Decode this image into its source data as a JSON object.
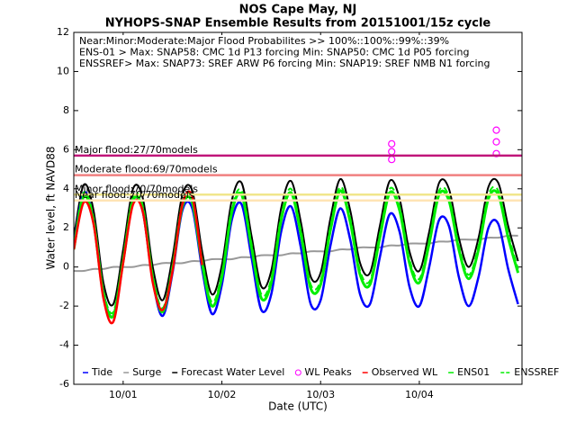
{
  "chart_data": {
    "type": "line",
    "title": "NOS Cape May, NJ",
    "subtitle": "NYHOPS-SNAP Ensemble Results from 20151001/15z cycle",
    "xlabel": "Date (UTC)",
    "ylabel": "Water level, ft NAVD88",
    "annotations": [
      "Near:Minor:Moderate:Major Flood Probabilites >> 100%::100%::99%::39%",
      "ENS-01 > Max: SNAP58: CMC 1d P13 forcing   Min: SNAP50: CMC 1d P05 forcing",
      "ENSSREF> Max: SNAP73: SREF ARW P6 forcing  Min: SNAP19: SREF NMB N1 forcing"
    ],
    "xlim": [
      0.5,
      5.04
    ],
    "ylim": [
      -6,
      12
    ],
    "xticks": [
      {
        "value": 1,
        "label": "10/01"
      },
      {
        "value": 2,
        "label": "10/02"
      },
      {
        "value": 3,
        "label": "10/03"
      },
      {
        "value": 4,
        "label": "10/04"
      }
    ],
    "yticks": [
      -6,
      -4,
      -2,
      0,
      2,
      4,
      6,
      8,
      10,
      12
    ],
    "grid": false,
    "thresholds": [
      {
        "label": "Major flood:27/70models",
        "value": 5.7,
        "color": "#c0157a"
      },
      {
        "label": "Moderate flood:69/70models",
        "value": 4.7,
        "color": "#f08080"
      },
      {
        "label": "Minor flood:70/70models",
        "value": 3.7,
        "color": "#f0e68c"
      },
      {
        "label": "Near flood:70/70models",
        "value": 3.4,
        "color": "#ffe4b5"
      }
    ],
    "x": [
      0.5,
      0.6,
      0.7,
      0.8,
      0.9,
      1.0,
      1.1,
      1.2,
      1.3,
      1.4,
      1.5,
      1.6,
      1.7,
      1.8,
      1.9,
      2.0,
      2.1,
      2.2,
      2.3,
      2.4,
      2.5,
      2.6,
      2.7,
      2.8,
      2.9,
      3.0,
      3.1,
      3.2,
      3.3,
      3.4,
      3.5,
      3.6,
      3.7,
      3.8,
      3.9,
      4.0,
      4.1,
      4.2,
      4.3,
      4.4,
      4.5,
      4.6,
      4.7,
      4.8,
      4.9,
      5.0
    ],
    "series": [
      {
        "name": "Tide",
        "color": "#0000ff",
        "style": "solid",
        "width": 2.5,
        "values": [
          1.1,
          3.8,
          2.4,
          -1.3,
          -2.5,
          0.3,
          3.4,
          2.8,
          -0.7,
          -2.5,
          -0.3,
          2.9,
          3.0,
          -0.1,
          -2.4,
          -0.9,
          2.4,
          3.2,
          0.5,
          -2.2,
          -1.4,
          1.8,
          3.1,
          1.0,
          -1.9,
          -1.7,
          1.1,
          3.0,
          1.4,
          -1.4,
          -1.9,
          0.5,
          2.7,
          1.8,
          -1.0,
          -2.0,
          0.0,
          2.4,
          2.1,
          -0.5,
          -2.0,
          -0.5,
          2.0,
          2.2,
          -0.1,
          -1.9
        ]
      },
      {
        "name": "Surge",
        "color": "#999999",
        "style": "solid",
        "width": 2,
        "values": [
          -0.2,
          -0.2,
          -0.1,
          -0.1,
          0.0,
          0.0,
          0.0,
          0.1,
          0.1,
          0.2,
          0.2,
          0.2,
          0.3,
          0.3,
          0.4,
          0.4,
          0.4,
          0.5,
          0.5,
          0.6,
          0.6,
          0.6,
          0.7,
          0.7,
          0.8,
          0.8,
          0.8,
          0.9,
          0.9,
          1.0,
          1.0,
          1.0,
          1.1,
          1.1,
          1.2,
          1.2,
          1.2,
          1.3,
          1.3,
          1.4,
          1.4,
          1.4,
          1.5,
          1.5,
          1.6,
          1.6
        ]
      },
      {
        "name": "Forecast Water Level",
        "color": "#000000",
        "style": "solid",
        "width": 2,
        "values": [
          1.5,
          4.2,
          2.9,
          -0.8,
          -1.9,
          0.9,
          4.0,
          3.5,
          0.0,
          -1.7,
          0.5,
          3.7,
          3.9,
          0.8,
          -1.4,
          0.1,
          3.4,
          4.3,
          1.6,
          -1.0,
          -0.2,
          3.0,
          4.4,
          2.3,
          -0.5,
          -0.3,
          2.5,
          4.5,
          2.9,
          0.2,
          -0.3,
          2.1,
          4.4,
          3.5,
          0.8,
          -0.2,
          1.8,
          4.3,
          4.0,
          1.5,
          0.0,
          1.5,
          4.1,
          4.3,
          2.1,
          0.3
        ]
      },
      {
        "name": "WL Peaks",
        "color": "#ff00ff",
        "style": "circle",
        "x": [
          3.72,
          3.72,
          3.72,
          4.78,
          4.78,
          4.78
        ],
        "values": [
          6.3,
          5.9,
          5.5,
          7.0,
          6.4,
          5.8
        ]
      },
      {
        "name": "Observed WL",
        "color": "#ff0000",
        "style": "solid",
        "width": 2.5,
        "values": [
          0.9,
          3.3,
          2.2,
          -1.6,
          -2.8,
          0.2,
          3.2,
          2.8,
          -0.8,
          -2.2,
          -0.2,
          3.2,
          3.6,
          0.1,
          null,
          null,
          null,
          null,
          null,
          null,
          null,
          null,
          null,
          null,
          null,
          null,
          null,
          null,
          null,
          null,
          null,
          null,
          null,
          null,
          null,
          null,
          null,
          null,
          null,
          null,
          null,
          null,
          null,
          null,
          null,
          null
        ]
      },
      {
        "name": "ENS01",
        "color": "#00ee00",
        "style": "solid",
        "width": 3,
        "values": [
          0.9,
          3.6,
          2.3,
          -1.4,
          -2.5,
          0.3,
          3.4,
          2.9,
          -0.6,
          -2.3,
          -0.1,
          3.1,
          3.3,
          0.2,
          -2.0,
          -0.5,
          2.8,
          3.7,
          1.0,
          -1.6,
          -0.8,
          2.4,
          3.8,
          1.7,
          -1.1,
          -0.9,
          1.9,
          3.9,
          2.3,
          -0.4,
          -0.9,
          1.5,
          3.8,
          2.9,
          0.2,
          -0.8,
          1.2,
          3.7,
          3.4,
          0.9,
          -0.6,
          0.9,
          3.5,
          3.7,
          1.5,
          -0.3
        ]
      },
      {
        "name": "ENSSREF",
        "color": "#00ee00",
        "style": "dashed",
        "width": 2,
        "values": [
          1.1,
          3.8,
          2.5,
          -1.2,
          -2.3,
          0.5,
          3.6,
          3.1,
          -0.4,
          -2.1,
          0.1,
          3.3,
          3.5,
          0.4,
          -1.8,
          -0.3,
          3.0,
          3.9,
          1.2,
          -1.4,
          -0.6,
          2.6,
          4.0,
          1.9,
          -0.9,
          -0.7,
          2.1,
          4.1,
          2.5,
          -0.2,
          -0.7,
          1.7,
          4.0,
          3.1,
          0.4,
          -0.6,
          1.4,
          3.9,
          3.6,
          1.1,
          -0.4,
          1.1,
          3.7,
          3.9,
          1.7,
          -0.1
        ]
      }
    ]
  }
}
